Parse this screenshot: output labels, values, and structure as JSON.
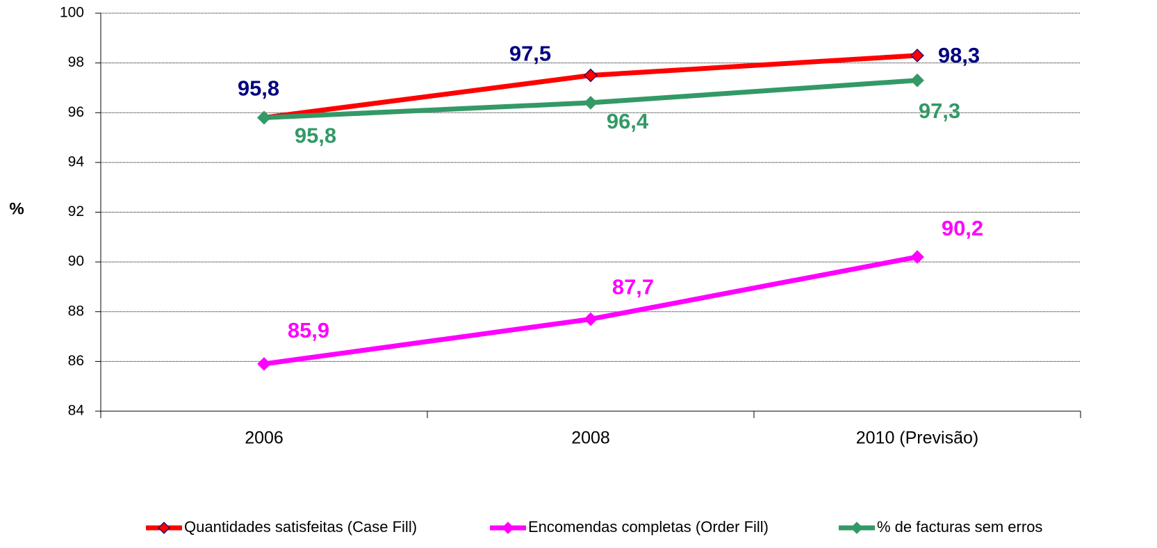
{
  "chart_data": {
    "type": "line",
    "y_label": "%",
    "categories": [
      "2006",
      "2008",
      "2010 (Previsão)"
    ],
    "series": [
      {
        "name": "Quantidades satisfeitas (Case Fill)",
        "color": "#ff0000",
        "marker_edge_color": "#000080",
        "label_color": "#000080",
        "values": [
          95.8,
          97.5,
          98.3
        ],
        "value_labels": [
          "95,8",
          "97,5",
          "98,3"
        ]
      },
      {
        "name": "Encomendas completas (Order Fill)",
        "color": "#ff00ff",
        "label_color": "#ff00ff",
        "values": [
          85.9,
          87.7,
          90.2
        ],
        "value_labels": [
          "85,9",
          "87,7",
          "90,2"
        ]
      },
      {
        "name": "% de facturas sem erros",
        "color": "#339966",
        "label_color": "#339966",
        "values": [
          95.8,
          96.4,
          97.3
        ],
        "value_labels": [
          "95,8",
          "96,4",
          "97,3"
        ]
      }
    ],
    "ylim": [
      84,
      100
    ],
    "yticks": [
      84,
      86,
      88,
      90,
      92,
      94,
      96,
      98,
      100
    ],
    "grid": true,
    "legend": "bottom"
  }
}
